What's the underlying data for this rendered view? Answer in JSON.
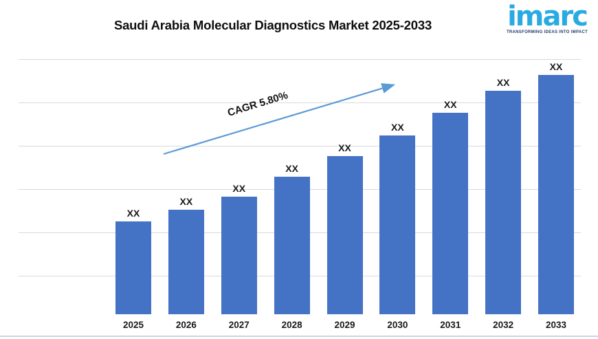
{
  "header": {
    "title": "Saudi Arabia Molecular Diagnostics Market 2025-2033"
  },
  "logo": {
    "brand": "imarc",
    "tagline": "TRANSFORMING IDEAS INTO IMPACT",
    "brand_color": "#29ABE2",
    "tagline_color": "#233A6B"
  },
  "chart_data": {
    "type": "bar",
    "title": "Saudi Arabia Molecular Diagnostics Market 2025-2033",
    "categories": [
      "2025",
      "2026",
      "2027",
      "2028",
      "2029",
      "2030",
      "2031",
      "2032",
      "2033"
    ],
    "values": [
      "XX",
      "XX",
      "XX",
      "XX",
      "XX",
      "XX",
      "XX",
      "XX",
      "XX"
    ],
    "relative_heights_pct": [
      36.4,
      41.0,
      46.1,
      53.9,
      62.0,
      70.1,
      79.0,
      87.6,
      93.8
    ],
    "annotation": {
      "label": "CAGR 5.80%"
    },
    "xlabel": "",
    "ylabel": "",
    "y_axis_tick_labels": "none (values masked as XX)",
    "legend_position": "none",
    "gridlines": "horizontal",
    "gridline_count": 6,
    "bar_color": "#4472C4",
    "arrow_color": "#5B9BD5",
    "gridline_color": "#D9D9D9",
    "label_color": "#1A1A1A"
  }
}
